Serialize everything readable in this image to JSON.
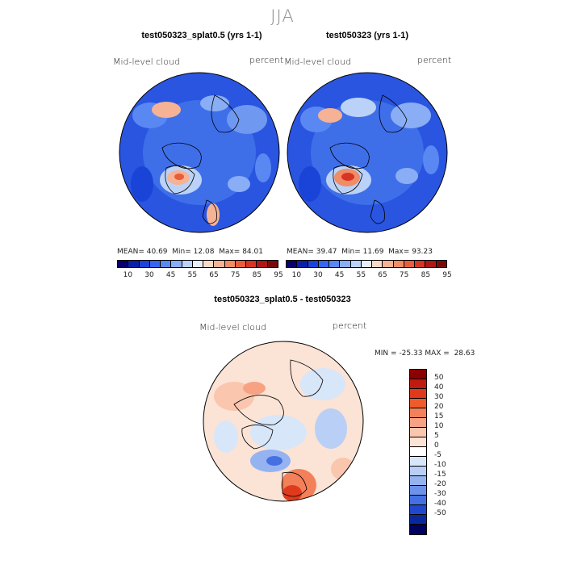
{
  "season": "JJA",
  "panels": [
    {
      "title": "test050323_splat0.5 (yrs 1-1)",
      "variable": "Mid-level cloud",
      "units": "percent",
      "mean_label": "MEAN=",
      "mean": "40.69",
      "min_label": "Min=",
      "min": "12.08",
      "max_label": "Max=",
      "max": "84.01"
    },
    {
      "title": "test050323 (yrs 1-1)",
      "variable": "Mid-level cloud",
      "units": "percent",
      "mean_label": "MEAN=",
      "mean": "39.47",
      "min_label": "Min=",
      "min": "11.69",
      "max_label": "Max=",
      "max": "93.23"
    }
  ],
  "colorbar_top": {
    "colors": [
      "#08006e",
      "#0c1fa8",
      "#1a44d8",
      "#3567ee",
      "#5a88f3",
      "#89aef6",
      "#bbd2f8",
      "#e8eefa",
      "#fbd9c8",
      "#f6b294",
      "#f08c66",
      "#e85e3a",
      "#d73424",
      "#b01616",
      "#7a0a0a"
    ],
    "ticks": [
      "10",
      "30",
      "45",
      "55",
      "65",
      "75",
      "85",
      "95"
    ]
  },
  "diff_panel": {
    "title": "test050323_splat0.5 - test050323",
    "variable": "Mid-level cloud",
    "units": "percent",
    "min_label": "MIN =",
    "min": "-25.33",
    "max_label": "MAX =",
    "max": "28.63"
  },
  "colorbar_diff": {
    "colors": [
      "#8b0000",
      "#c11a10",
      "#e03a1c",
      "#f05a2c",
      "#f4805a",
      "#f7a383",
      "#fac6ae",
      "#fbe3d6",
      "#ffffff",
      "#d8e6fa",
      "#b9cff6",
      "#95b3f1",
      "#6c92ea",
      "#4470e2",
      "#2148cc",
      "#0a2899",
      "#02005e"
    ],
    "ticks": [
      "50",
      "40",
      "30",
      "20",
      "15",
      "10",
      "5",
      "0",
      "-5",
      "-10",
      "-15",
      "-20",
      "-30",
      "-40",
      "-50"
    ]
  }
}
